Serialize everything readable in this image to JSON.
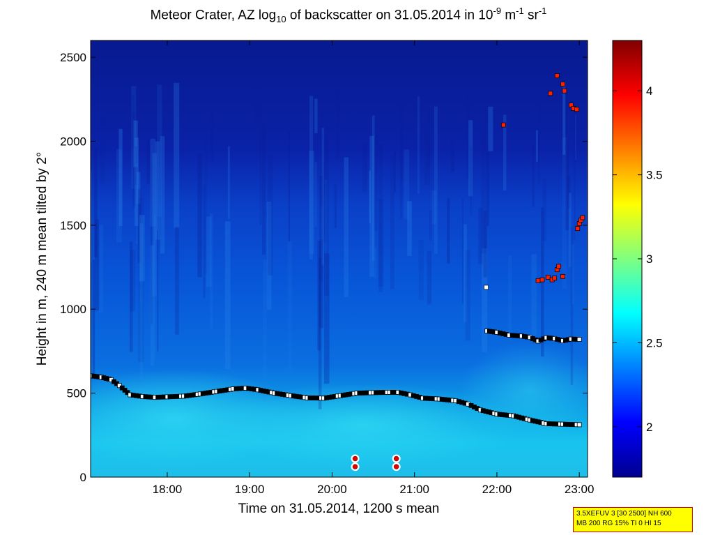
{
  "chart_data": {
    "type": "heatmap",
    "title": {
      "prefix": "Meteor Crater, AZ log",
      "sub": "10",
      "middle": " of backscatter on 31.05.2014 in 10",
      "sup1": "-9",
      "m": " m",
      "sup2": "-1",
      "sr": " sr",
      "sup3": "-1"
    },
    "xlabel": "Time on 31.05.2014, 1200 s mean",
    "ylabel": "Height in m, 240 m mean tilted by 2°",
    "xlim_hours": [
      17.07,
      23.1
    ],
    "x_ticks": [
      {
        "h": 18,
        "label": "18:00"
      },
      {
        "h": 19,
        "label": "19:00"
      },
      {
        "h": 20,
        "label": "20:00"
      },
      {
        "h": 21,
        "label": "21:00"
      },
      {
        "h": 22,
        "label": "22:00"
      },
      {
        "h": 23,
        "label": "23:00"
      }
    ],
    "ylim": [
      0,
      2600
    ],
    "y_ticks": [
      0,
      500,
      1000,
      1500,
      2000,
      2500
    ],
    "colorbar": {
      "range": [
        1.7,
        4.3
      ],
      "ticks": [
        "2",
        "2.5",
        "3",
        "3.5",
        "4"
      ],
      "tick_values": [
        2,
        2.5,
        3,
        3.5,
        4
      ],
      "colormap": "jet"
    },
    "series": [
      {
        "name": "lower layer",
        "marker": "black/white squares",
        "points": [
          [
            17.08,
            603
          ],
          [
            17.2,
            595
          ],
          [
            17.32,
            580
          ],
          [
            17.42,
            545
          ],
          [
            17.55,
            490
          ],
          [
            17.7,
            480
          ],
          [
            17.85,
            475
          ],
          [
            18,
            478
          ],
          [
            18.2,
            482
          ],
          [
            18.4,
            495
          ],
          [
            18.6,
            510
          ],
          [
            18.8,
            525
          ],
          [
            18.95,
            530
          ],
          [
            19.1,
            520
          ],
          [
            19.3,
            500
          ],
          [
            19.5,
            485
          ],
          [
            19.7,
            472
          ],
          [
            19.9,
            470
          ],
          [
            20.1,
            485
          ],
          [
            20.3,
            500
          ],
          [
            20.5,
            503
          ],
          [
            20.7,
            505
          ],
          [
            20.8,
            505
          ],
          [
            20.95,
            490
          ],
          [
            21.1,
            470
          ],
          [
            21.3,
            465
          ],
          [
            21.5,
            455
          ],
          [
            21.65,
            435
          ],
          [
            21.8,
            400
          ],
          [
            22,
            375
          ],
          [
            22.2,
            365
          ],
          [
            22.4,
            340
          ],
          [
            22.6,
            318
          ],
          [
            22.8,
            315
          ],
          [
            23,
            312
          ]
        ]
      },
      {
        "name": "upper layer",
        "marker": "black/white squares",
        "points": [
          [
            21.88,
            870
          ],
          [
            22,
            862
          ],
          [
            22.15,
            845
          ],
          [
            22.3,
            840
          ],
          [
            22.4,
            832
          ],
          [
            22.5,
            810
          ],
          [
            22.6,
            830
          ],
          [
            22.7,
            825
          ],
          [
            22.8,
            812
          ],
          [
            22.9,
            822
          ],
          [
            23,
            820
          ]
        ]
      },
      {
        "name": "cloud base",
        "marker": "red squares",
        "points": [
          [
            22.08,
            2097
          ],
          [
            22.5,
            1170
          ],
          [
            22.55,
            1175
          ],
          [
            22.62,
            1190
          ],
          [
            22.67,
            1175
          ],
          [
            22.7,
            1185
          ],
          [
            22.73,
            1235
          ],
          [
            22.75,
            1255
          ],
          [
            22.8,
            1195
          ],
          [
            22.65,
            2285
          ],
          [
            22.73,
            2390
          ],
          [
            22.8,
            2340
          ],
          [
            22.82,
            2300
          ],
          [
            22.9,
            2215
          ],
          [
            22.93,
            2195
          ],
          [
            22.97,
            2190
          ],
          [
            22.98,
            1480
          ],
          [
            23.0,
            1510
          ],
          [
            23.02,
            1530
          ],
          [
            23.04,
            1545
          ]
        ]
      },
      {
        "name": "isolated",
        "marker": "white square",
        "points": [
          [
            21.87,
            1130
          ]
        ]
      },
      {
        "name": "surface markers",
        "marker": "red/white circles",
        "points": [
          [
            20.28,
            110
          ],
          [
            20.28,
            62
          ],
          [
            20.78,
            110
          ],
          [
            20.78,
            62
          ]
        ]
      }
    ]
  },
  "infobox": {
    "line1": "3.5XEFUV 3 [30 2500] NH 600",
    "line2": "MB 200 RG 15% TI 0 HI 15"
  }
}
